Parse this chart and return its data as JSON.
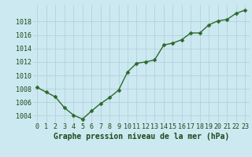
{
  "hours": [
    0,
    1,
    2,
    3,
    4,
    5,
    6,
    7,
    8,
    9,
    10,
    11,
    12,
    13,
    14,
    15,
    16,
    17,
    18,
    19,
    20,
    21,
    22,
    23
  ],
  "pressure": [
    1008.2,
    1007.5,
    1006.8,
    1005.2,
    1004.1,
    1003.5,
    1004.7,
    1005.8,
    1006.7,
    1007.8,
    1010.5,
    1011.8,
    1012.0,
    1012.3,
    1014.5,
    1014.8,
    1015.3,
    1016.3,
    1016.3,
    1017.5,
    1018.1,
    1018.3,
    1019.2,
    1019.7
  ],
  "line_color": "#2d6a2d",
  "marker": "D",
  "marker_size": 2.5,
  "bg_color": "#cce8f0",
  "grid_color": "#b0cdd8",
  "bottom_label": "Graphe pression niveau de la mer (hPa)",
  "label_color": "#1a4a1a",
  "ylim": [
    1003.0,
    1020.5
  ],
  "yticks": [
    1004,
    1006,
    1008,
    1010,
    1012,
    1014,
    1016,
    1018
  ],
  "tick_fontsize": 6.0,
  "title_fontsize": 7.0,
  "line_width": 1.0
}
